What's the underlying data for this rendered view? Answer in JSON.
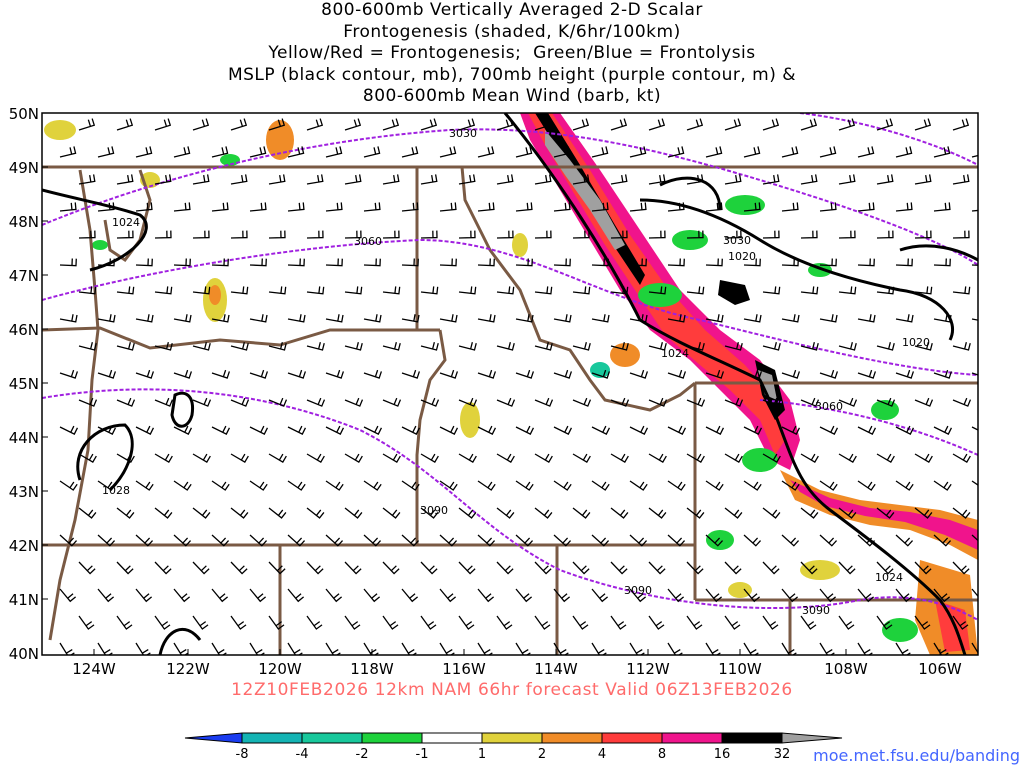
{
  "title_lines": [
    "800-600mb Vertically Averaged 2-D Scalar",
    "Frontogenesis (shaded, K/6hr/100km)",
    "Yellow/Red = Frontogenesis;  Green/Blue = Frontolysis",
    "MSLP (black contour, mb), 700mb height (purple contour, m) &",
    "800-600mb Mean Wind (barb, kt)"
  ],
  "lat_labels": [
    "50N",
    "49N",
    "48N",
    "47N",
    "46N",
    "45N",
    "44N",
    "43N",
    "42N",
    "41N",
    "40N"
  ],
  "lon_labels": [
    "124W",
    "122W",
    "120W",
    "118W",
    "116W",
    "114W",
    "112W",
    "110W",
    "108W",
    "106W"
  ],
  "height_labels": [
    "3030",
    "3060",
    "3030",
    "3060",
    "3090",
    "3090",
    "3090"
  ],
  "pressure_labels": [
    "1024",
    "1028",
    "1020",
    "1020",
    "1024",
    "1024"
  ],
  "colorbar": {
    "ticks": [
      "-8",
      "-4",
      "-2",
      "-1",
      "1",
      "2",
      "4",
      "8",
      "16",
      "32"
    ],
    "colors": [
      "#1a3cf0",
      "#14b4b4",
      "#18c89c",
      "#1ed23c",
      "#ffffff",
      "#e0d23c",
      "#f08c28",
      "#ff3c3c",
      "#f0148c",
      "#000000",
      "#a0a0a0"
    ]
  },
  "footer": "12Z10FEB2026 12km NAM 66hr forecast Valid 06Z13FEB2026",
  "credit": "moe.met.fsu.edu/banding",
  "colors": {
    "state_border": "#7a5a44",
    "height_contour": "#a020e0",
    "pressure_contour": "#000000",
    "footer_text": "#ff6b6b",
    "credit_text": "#4466ff"
  }
}
